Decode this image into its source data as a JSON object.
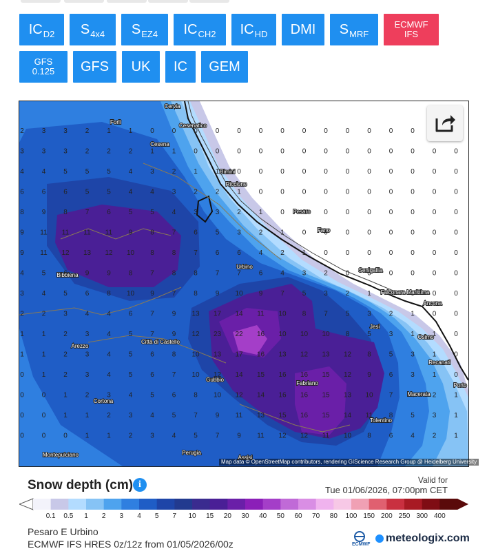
{
  "models_row1": [
    {
      "main": "IC",
      "sub": "D2",
      "active": false
    },
    {
      "main": "S",
      "sub": "4x4",
      "active": false
    },
    {
      "main": "S",
      "sub": "EZ4",
      "active": false
    },
    {
      "main": "IC",
      "sub": "CH2",
      "active": false
    },
    {
      "main": "IC",
      "sub": "HD",
      "active": false
    },
    {
      "main": "DMI",
      "sub": "",
      "active": false
    },
    {
      "main": "S",
      "sub": "MRF",
      "active": false
    },
    {
      "main": "ECMWF",
      "sub": "IFS",
      "active": true,
      "stacked": true
    }
  ],
  "models_row2": [
    {
      "main": "GFS",
      "sub": "0.125",
      "active": false,
      "stacked": true
    },
    {
      "main": "GFS",
      "sub": "",
      "active": false
    },
    {
      "main": "UK",
      "sub": "",
      "active": false
    },
    {
      "main": "IC",
      "sub": "",
      "active": false
    },
    {
      "main": "GEM",
      "sub": "",
      "active": false
    }
  ],
  "map": {
    "places": [
      {
        "name": "Cervia"
      },
      {
        "name": "Forlì"
      },
      {
        "name": "Cesenatico"
      },
      {
        "name": "Cesena"
      },
      {
        "name": "Rimini"
      },
      {
        "name": "Riccione"
      },
      {
        "name": "Pesaro"
      },
      {
        "name": "Fano"
      },
      {
        "name": "Urbino"
      },
      {
        "name": "Bibbiena"
      },
      {
        "name": "Senigallia"
      },
      {
        "name": "Falconara Marittima"
      },
      {
        "name": "Ancona"
      },
      {
        "name": "Jesi"
      },
      {
        "name": "Osimo"
      },
      {
        "name": "Recanati"
      },
      {
        "name": "Arezzo"
      },
      {
        "name": "Città di Castello"
      },
      {
        "name": "Gubbio"
      },
      {
        "name": "Fabriano"
      },
      {
        "name": "Macerata"
      },
      {
        "name": "Cortona"
      },
      {
        "name": "Tolentino"
      },
      {
        "name": "Montepulciano"
      },
      {
        "name": "Perugia"
      },
      {
        "name": "Assisi"
      },
      {
        "name": "Porto"
      }
    ],
    "attribution": "Map data © OpenStreetMap contributors, rendering GIScience Research Group @ Heidelberg University",
    "share_icon": "share-icon"
  },
  "legend": {
    "title": "Snow depth (cm)",
    "info_icon": "info-icon",
    "valid_label": "Valid for",
    "valid_time": "Tue 01/06/2026, 07:00pm CET",
    "ticks": [
      "0.1",
      "0.5",
      "1",
      "2",
      "3",
      "4",
      "5",
      "7",
      "10",
      "15",
      "20",
      "30",
      "40",
      "50",
      "60",
      "70",
      "80",
      "100",
      "150",
      "200",
      "250",
      "300",
      "400"
    ],
    "colors": [
      "#f3f3fb",
      "#c8c8e8",
      "#b3dcff",
      "#86c3f5",
      "#4ea3ee",
      "#2f7fe0",
      "#1f5dc6",
      "#1e45a8",
      "#223a8f",
      "#3a2b8f",
      "#4a1f96",
      "#6a1fa8",
      "#8b1fb8",
      "#a43ec8",
      "#c06ad7",
      "#d98ee4",
      "#f0b3ee",
      "#f7c8e6",
      "#f0a0b4",
      "#e06070",
      "#c93040",
      "#a81a24",
      "#7f0d14",
      "#5a0a0a"
    ],
    "location": "Pesaro E Urbino",
    "run_info": "ECMWF IFS HRES 0z/12z from 01/05/2026/00z",
    "ecmwf_text": "ECMWF",
    "brand": "meteologix.com"
  }
}
